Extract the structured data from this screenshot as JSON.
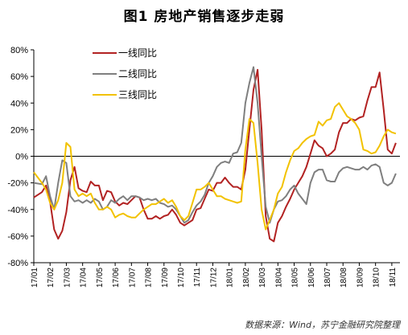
{
  "chart_data": {
    "type": "line",
    "title": "图1 房地产销售逐步走弱",
    "source": "数据来源：Wind，苏宁金融研究院整理",
    "ylim": [
      -80,
      80
    ],
    "y_ticks": [
      "80%",
      "60%",
      "40%",
      "20%",
      "0%",
      "-20%",
      "-40%",
      "-60%",
      "-80%"
    ],
    "y_tick_values": [
      80,
      60,
      40,
      20,
      0,
      -20,
      -40,
      -60,
      -80
    ],
    "x_unit": "week",
    "x_start": "17/01",
    "x_ticks": [
      "17/01",
      "17/02",
      "17/03",
      "17/04",
      "17/05",
      "17/06",
      "17/07",
      "17/08",
      "17/09",
      "17/10",
      "17/11",
      "17/12",
      "18/01",
      "18/02",
      "18/03",
      "18/04",
      "18/05",
      "18/06",
      "18/07",
      "18/08",
      "18/09",
      "18/10",
      "18/11"
    ],
    "x_tick_weeks": [
      0,
      4,
      8,
      12,
      16,
      20,
      24,
      28,
      32,
      36,
      40,
      44,
      48,
      52,
      56,
      60,
      64,
      68,
      72,
      76,
      80,
      84,
      88
    ],
    "legend_position": "top-left",
    "grid": false,
    "series": [
      {
        "name": "一线同比",
        "color": "#b22222",
        "points": [
          [
            0,
            -31
          ],
          [
            2,
            -27
          ],
          [
            3,
            -22
          ],
          [
            4,
            -34
          ],
          [
            5,
            -55
          ],
          [
            6,
            -62
          ],
          [
            7,
            -56
          ],
          [
            8,
            -42
          ],
          [
            9,
            -18
          ],
          [
            10,
            -8
          ],
          [
            11,
            -24
          ],
          [
            12,
            -26
          ],
          [
            13,
            -27
          ],
          [
            14,
            -19
          ],
          [
            15,
            -22
          ],
          [
            16,
            -22
          ],
          [
            17,
            -33
          ],
          [
            18,
            -26
          ],
          [
            19,
            -27
          ],
          [
            20,
            -34
          ],
          [
            21,
            -37
          ],
          [
            22,
            -35
          ],
          [
            23,
            -36
          ],
          [
            24,
            -33
          ],
          [
            25,
            -30
          ],
          [
            26,
            -31
          ],
          [
            27,
            -40
          ],
          [
            28,
            -47
          ],
          [
            29,
            -47
          ],
          [
            30,
            -45
          ],
          [
            31,
            -47
          ],
          [
            32,
            -45
          ],
          [
            33,
            -44
          ],
          [
            34,
            -40
          ],
          [
            35,
            -44
          ],
          [
            36,
            -50
          ],
          [
            37,
            -52
          ],
          [
            38,
            -50
          ],
          [
            39,
            -48
          ],
          [
            40,
            -40
          ],
          [
            41,
            -39
          ],
          [
            42,
            -32
          ],
          [
            43,
            -25
          ],
          [
            44,
            -26
          ],
          [
            45,
            -20
          ],
          [
            46,
            -20
          ],
          [
            47,
            -16
          ],
          [
            48,
            -20
          ],
          [
            49,
            -23
          ],
          [
            50,
            -23
          ],
          [
            51,
            -25
          ],
          [
            52,
            -10
          ],
          [
            53,
            20
          ],
          [
            54,
            50
          ],
          [
            55,
            65
          ],
          [
            56,
            20
          ],
          [
            57,
            -45
          ],
          [
            58,
            -62
          ],
          [
            59,
            -64
          ],
          [
            60,
            -50
          ],
          [
            61,
            -45
          ],
          [
            62,
            -38
          ],
          [
            63,
            -32
          ],
          [
            64,
            -25
          ],
          [
            65,
            -20
          ],
          [
            66,
            -15
          ],
          [
            67,
            -8
          ],
          [
            68,
            2
          ],
          [
            69,
            12
          ],
          [
            70,
            8
          ],
          [
            71,
            6
          ],
          [
            72,
            0
          ],
          [
            73,
            2
          ],
          [
            74,
            5
          ],
          [
            75,
            18
          ],
          [
            76,
            25
          ],
          [
            77,
            25
          ],
          [
            78,
            28
          ],
          [
            79,
            27
          ],
          [
            80,
            29
          ],
          [
            81,
            30
          ],
          [
            82,
            42
          ],
          [
            83,
            52
          ],
          [
            84,
            52
          ],
          [
            85,
            63
          ],
          [
            86,
            35
          ],
          [
            87,
            5
          ],
          [
            88,
            2
          ],
          [
            89,
            10
          ]
        ]
      },
      {
        "name": "二线同比",
        "color": "#7f7f7f",
        "points": [
          [
            0,
            -20
          ],
          [
            2,
            -21
          ],
          [
            3,
            -15
          ],
          [
            4,
            -30
          ],
          [
            5,
            -40
          ],
          [
            6,
            -20
          ],
          [
            7,
            -3
          ],
          [
            8,
            -5
          ],
          [
            9,
            -30
          ],
          [
            10,
            -34
          ],
          [
            11,
            -33
          ],
          [
            12,
            -35
          ],
          [
            13,
            -33
          ],
          [
            14,
            -35
          ],
          [
            15,
            -32
          ],
          [
            16,
            -34
          ],
          [
            17,
            -40
          ],
          [
            18,
            -38
          ],
          [
            19,
            -33
          ],
          [
            20,
            -35
          ],
          [
            21,
            -32
          ],
          [
            22,
            -30
          ],
          [
            23,
            -33
          ],
          [
            24,
            -30
          ],
          [
            25,
            -30
          ],
          [
            26,
            -31
          ],
          [
            27,
            -33
          ],
          [
            28,
            -32
          ],
          [
            29,
            -33
          ],
          [
            30,
            -32
          ],
          [
            31,
            -35
          ],
          [
            32,
            -36
          ],
          [
            33,
            -38
          ],
          [
            34,
            -37
          ],
          [
            35,
            -40
          ],
          [
            36,
            -45
          ],
          [
            37,
            -50
          ],
          [
            38,
            -48
          ],
          [
            39,
            -42
          ],
          [
            40,
            -37
          ],
          [
            41,
            -34
          ],
          [
            42,
            -29
          ],
          [
            43,
            -20
          ],
          [
            44,
            -15
          ],
          [
            45,
            -8
          ],
          [
            46,
            -5
          ],
          [
            47,
            -4
          ],
          [
            48,
            -5
          ],
          [
            49,
            2
          ],
          [
            50,
            3
          ],
          [
            51,
            10
          ],
          [
            52,
            40
          ],
          [
            53,
            55
          ],
          [
            54,
            67
          ],
          [
            55,
            40
          ],
          [
            56,
            0
          ],
          [
            57,
            -38
          ],
          [
            58,
            -50
          ],
          [
            59,
            -40
          ],
          [
            60,
            -34
          ],
          [
            61,
            -33
          ],
          [
            62,
            -30
          ],
          [
            63,
            -25
          ],
          [
            64,
            -22
          ],
          [
            65,
            -28
          ],
          [
            66,
            -32
          ],
          [
            67,
            -36
          ],
          [
            68,
            -20
          ],
          [
            69,
            -12
          ],
          [
            70,
            -10
          ],
          [
            71,
            -10
          ],
          [
            72,
            -18
          ],
          [
            73,
            -19
          ],
          [
            74,
            -19
          ],
          [
            75,
            -12
          ],
          [
            76,
            -9
          ],
          [
            77,
            -8
          ],
          [
            78,
            -9
          ],
          [
            79,
            -10
          ],
          [
            80,
            -10
          ],
          [
            81,
            -8
          ],
          [
            82,
            -10
          ],
          [
            83,
            -7
          ],
          [
            84,
            -6
          ],
          [
            85,
            -8
          ],
          [
            86,
            -20
          ],
          [
            87,
            -22
          ],
          [
            88,
            -20
          ],
          [
            89,
            -13
          ]
        ]
      },
      {
        "name": "三线同比",
        "color": "#f2c200",
        "points": [
          [
            0,
            -12
          ],
          [
            2,
            -20
          ],
          [
            3,
            -25
          ],
          [
            4,
            -35
          ],
          [
            5,
            -40
          ],
          [
            6,
            -33
          ],
          [
            7,
            -20
          ],
          [
            8,
            10
          ],
          [
            9,
            7
          ],
          [
            10,
            -25
          ],
          [
            11,
            -30
          ],
          [
            12,
            -28
          ],
          [
            13,
            -30
          ],
          [
            14,
            -28
          ],
          [
            15,
            -35
          ],
          [
            16,
            -40
          ],
          [
            17,
            -40
          ],
          [
            18,
            -38
          ],
          [
            19,
            -40
          ],
          [
            20,
            -46
          ],
          [
            21,
            -44
          ],
          [
            22,
            -43
          ],
          [
            23,
            -45
          ],
          [
            24,
            -46
          ],
          [
            25,
            -46
          ],
          [
            26,
            -43
          ],
          [
            27,
            -40
          ],
          [
            28,
            -38
          ],
          [
            29,
            -36
          ],
          [
            30,
            -36
          ],
          [
            31,
            -34
          ],
          [
            32,
            -32
          ],
          [
            33,
            -35
          ],
          [
            34,
            -33
          ],
          [
            35,
            -38
          ],
          [
            36,
            -45
          ],
          [
            37,
            -48
          ],
          [
            38,
            -45
          ],
          [
            39,
            -35
          ],
          [
            40,
            -25
          ],
          [
            41,
            -25
          ],
          [
            42,
            -23
          ],
          [
            43,
            -20
          ],
          [
            44,
            -25
          ],
          [
            45,
            -30
          ],
          [
            46,
            -30
          ],
          [
            47,
            -32
          ],
          [
            48,
            -33
          ],
          [
            49,
            -34
          ],
          [
            50,
            -35
          ],
          [
            51,
            -34
          ],
          [
            52,
            5
          ],
          [
            53,
            28
          ],
          [
            54,
            25
          ],
          [
            55,
            -5
          ],
          [
            56,
            -40
          ],
          [
            57,
            -55
          ],
          [
            58,
            -48
          ],
          [
            59,
            -40
          ],
          [
            60,
            -28
          ],
          [
            61,
            -23
          ],
          [
            62,
            -12
          ],
          [
            63,
            -3
          ],
          [
            64,
            4
          ],
          [
            65,
            6
          ],
          [
            66,
            10
          ],
          [
            67,
            13
          ],
          [
            68,
            15
          ],
          [
            69,
            16
          ],
          [
            70,
            26
          ],
          [
            71,
            23
          ],
          [
            72,
            27
          ],
          [
            73,
            28
          ],
          [
            74,
            37
          ],
          [
            75,
            40
          ],
          [
            76,
            35
          ],
          [
            77,
            30
          ],
          [
            78,
            28
          ],
          [
            79,
            25
          ],
          [
            80,
            20
          ],
          [
            81,
            5
          ],
          [
            82,
            4
          ],
          [
            83,
            2
          ],
          [
            84,
            3
          ],
          [
            85,
            8
          ],
          [
            86,
            15
          ],
          [
            87,
            20
          ],
          [
            88,
            18
          ],
          [
            89,
            17
          ]
        ]
      }
    ]
  }
}
